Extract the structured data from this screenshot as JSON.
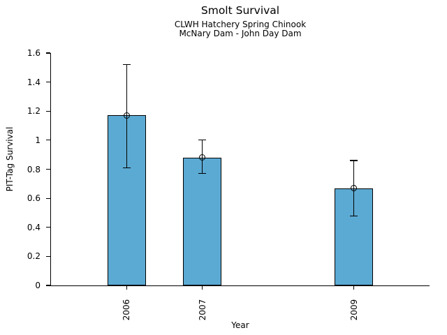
{
  "chart_data": {
    "type": "bar",
    "title": "Smolt Survival",
    "subtitle1": "CLWH Hatchery Spring Chinook",
    "subtitle2": "McNary Dam - John Day Dam",
    "xlabel": "Year",
    "ylabel": "PIT-Tag Survival",
    "categories": [
      "2006",
      "2007",
      "2009"
    ],
    "x_years": [
      2006,
      2007,
      2009
    ],
    "values": [
      1.17,
      0.88,
      0.67
    ],
    "error_low": [
      0.81,
      0.77,
      0.48
    ],
    "error_high": [
      1.52,
      1.0,
      0.86
    ],
    "marker": "open-circle",
    "bar_color": "#5BAAD3",
    "bar_edge_color": "#000000",
    "error_color": "#000000",
    "xlim": [
      2005,
      2010
    ],
    "ylim": [
      0,
      1.6
    ],
    "yticks": [
      0,
      0.2,
      0.4,
      0.6,
      0.8,
      1,
      1.2,
      1.4,
      1.6
    ],
    "ytick_labels": [
      "0",
      "0.2",
      "0.4",
      "0.6",
      "0.8",
      "1",
      "1.2",
      "1.4",
      "1.6"
    ],
    "grid": false,
    "legend": false,
    "background": "#ffffff"
  }
}
